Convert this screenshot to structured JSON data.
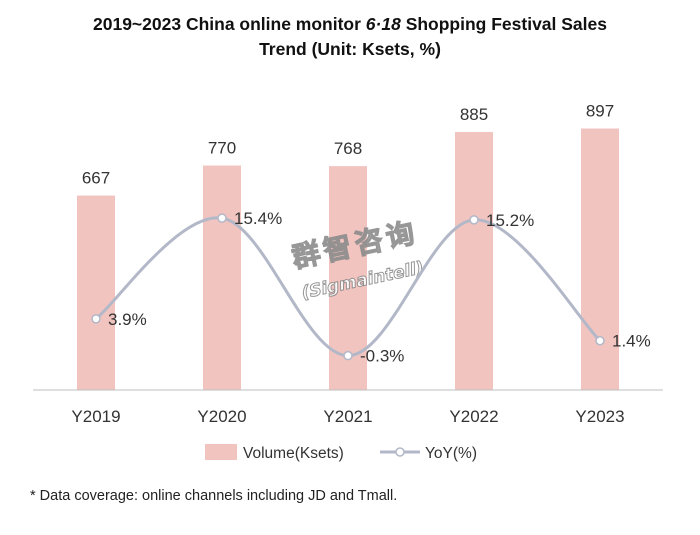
{
  "title": {
    "line1_prefix": "2019~2023 China online monitor ",
    "line1_italic": "6·18",
    "line1_suffix": " Shopping Festival Sales",
    "line2": "Trend (Unit: Ksets, %)"
  },
  "watermark": {
    "cn": "群智咨询",
    "en": "(Sigmaintell)"
  },
  "footnote": "* Data coverage: online channels including JD and Tmall.",
  "chart_data": {
    "type": "bar",
    "categories": [
      "Y2019",
      "Y2020",
      "Y2021",
      "Y2022",
      "Y2023"
    ],
    "series": [
      {
        "name": "Volume(Ksets)",
        "type": "bar",
        "values": [
          667,
          770,
          768,
          885,
          897
        ],
        "labels": [
          "667",
          "770",
          "768",
          "885",
          "897"
        ],
        "color": "#f2c4c0"
      },
      {
        "name": "YoY(%)",
        "type": "line",
        "values": [
          3.9,
          15.4,
          -0.3,
          15.2,
          1.4
        ],
        "labels": [
          "3.9%",
          "15.4%",
          "-0.3%",
          "15.2%",
          "1.4%"
        ],
        "color": "#b3b8c8"
      }
    ],
    "grid": false,
    "legend_position": "bottom"
  }
}
